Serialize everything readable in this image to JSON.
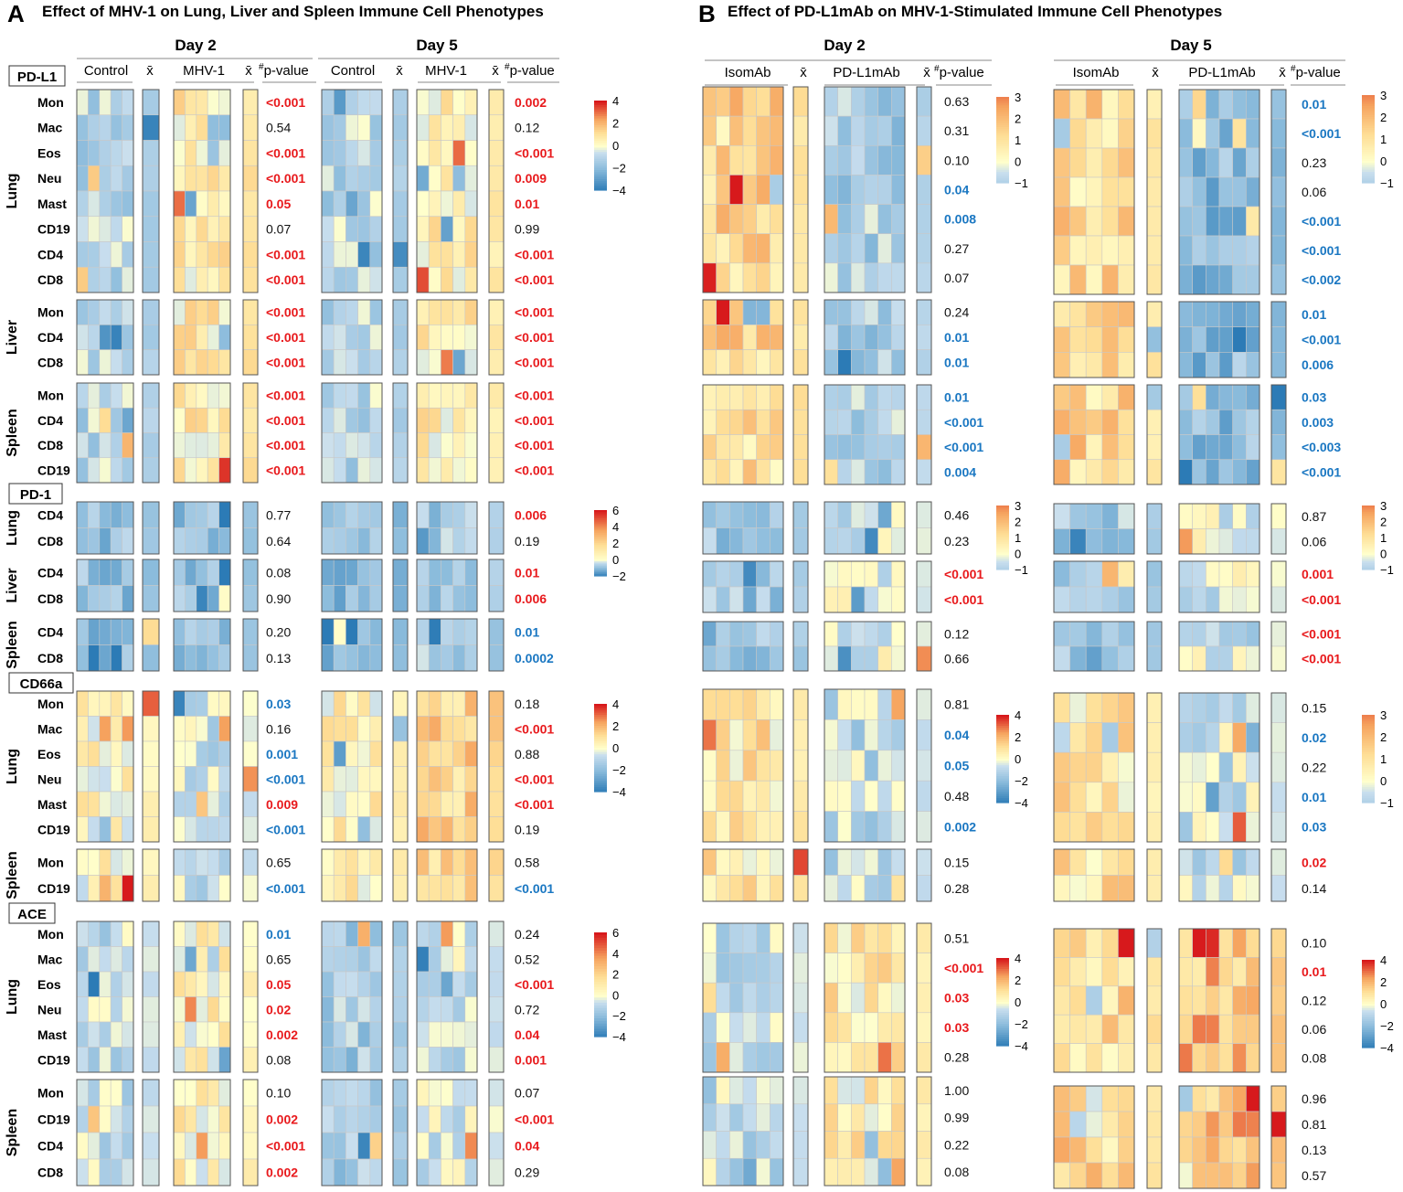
{
  "panels": {
    "A": {
      "letter": "A",
      "title": "Effect of MHV-1 on Lung, Liver and Spleen Immune Cell Phenotypes"
    },
    "B": {
      "letter": "B",
      "title": "Effect of PD-L1mAb on MHV-1-Stimulated Immune Cell Phenotypes"
    }
  },
  "headers": {
    "day2": "Day 2",
    "day5": "Day 5",
    "control": "Control",
    "mhv1": "MHV-1",
    "isomab": "IsomAb",
    "pdl1mab": "PD-L1mAb",
    "mean_symbol": "x̄",
    "pvalue_hash": "#",
    "pvalue": "p-value"
  },
  "colors": {
    "high": "#d7191c",
    "mid_high": "#f4a259",
    "mid": "#ffffbf",
    "mid_low": "#a6cce3",
    "low": "#2c7bb6",
    "sig_increase": "#e8191c",
    "sig_decrease": "#1a77c2",
    "nonsig": "#111111"
  },
  "chart_data": {
    "type": "heatmap",
    "title": "Immune cell phenotype heatmaps with group means and p-values",
    "blocks": [
      {
        "marker": "PD-L1",
        "legend": {
          "A": [
            -4,
            4
          ],
          "B": [
            -1,
            3
          ]
        },
        "tissues": [
          {
            "tissue": "Lung",
            "rows": [
              "Mon",
              "Mac",
              "Eos",
              "Neu",
              "Mast",
              "CD19",
              "CD4",
              "CD8"
            ],
            "pA_day2": [
              "<0.001",
              "0.54",
              "<0.001",
              "<0.001",
              "0.05",
              "0.07",
              "<0.001",
              "<0.001"
            ],
            "sA_day2": [
              "up",
              "ns",
              "up",
              "up",
              "up",
              "ns",
              "up",
              "up"
            ],
            "pA_day5": [
              "0.002",
              "0.12",
              "<0.001",
              "0.009",
              "0.01",
              "0.99",
              "<0.001",
              "<0.001"
            ],
            "sA_day5": [
              "up",
              "ns",
              "up",
              "up",
              "up",
              "ns",
              "up",
              "up"
            ],
            "pB_day2": [
              "0.63",
              "0.31",
              "0.10",
              "0.04",
              "0.008",
              "0.27",
              "0.07"
            ],
            "sB_day2": [
              "ns",
              "ns",
              "ns",
              "down",
              "down",
              "ns",
              "ns"
            ],
            "pB_day5": [
              "0.01",
              "<0.001",
              "0.23",
              "0.06",
              "<0.001",
              "<0.001",
              "<0.002"
            ],
            "sB_day5": [
              "down",
              "down",
              "ns",
              "ns",
              "down",
              "down",
              "down"
            ]
          },
          {
            "tissue": "Liver",
            "rows": [
              "Mon",
              "CD4",
              "CD8"
            ],
            "pA_day2": [
              "<0.001",
              "<0.001",
              "<0.001"
            ],
            "sA_day2": [
              "up",
              "up",
              "up"
            ],
            "pA_day5": [
              "<0.001",
              "<0.001",
              "<0.001"
            ],
            "sA_day5": [
              "up",
              "up",
              "up"
            ],
            "pB_day2": [
              "0.24",
              "0.01",
              "0.01"
            ],
            "sB_day2": [
              "ns",
              "down",
              "down"
            ],
            "pB_day5": [
              "0.01",
              "<0.001",
              "0.006"
            ],
            "sB_day5": [
              "down",
              "down",
              "down"
            ]
          },
          {
            "tissue": "Spleen",
            "rows": [
              "Mon",
              "CD4",
              "CD8",
              "CD19"
            ],
            "pA_day2": [
              "<0.001",
              "<0.001",
              "<0.001",
              "<0.001"
            ],
            "sA_day2": [
              "up",
              "up",
              "up",
              "up"
            ],
            "pA_day5": [
              "<0.001",
              "<0.001",
              "<0.001",
              "<0.001"
            ],
            "sA_day5": [
              "up",
              "up",
              "up",
              "up"
            ],
            "pB_day2": [
              "0.01",
              "<0.001",
              "<0.001",
              "0.004"
            ],
            "sB_day2": [
              "down",
              "down",
              "down",
              "down"
            ],
            "pB_day5": [
              "0.03",
              "0.003",
              "<0.003",
              "<0.001"
            ],
            "sB_day5": [
              "down",
              "down",
              "down",
              "down"
            ]
          }
        ]
      },
      {
        "marker": "PD-1",
        "legend": {
          "A": [
            -2,
            6
          ],
          "B": [
            -1,
            3
          ]
        },
        "tissues": [
          {
            "tissue": "Lung",
            "rows": [
              "CD4",
              "CD8"
            ],
            "pA_day2": [
              "0.77",
              "0.64"
            ],
            "sA_day2": [
              "ns",
              "ns"
            ],
            "pA_day5": [
              "0.006",
              "0.19"
            ],
            "sA_day5": [
              "up",
              "ns"
            ],
            "pB_day2": [
              "0.46",
              "0.23"
            ],
            "sB_day2": [
              "ns",
              "ns"
            ],
            "pB_day5": [
              "0.87",
              "0.06"
            ],
            "sB_day5": [
              "ns",
              "ns"
            ]
          },
          {
            "tissue": "Liver",
            "rows": [
              "CD4",
              "CD8"
            ],
            "pA_day2": [
              "0.08",
              "0.90"
            ],
            "sA_day2": [
              "ns",
              "ns"
            ],
            "pA_day5": [
              "0.01",
              "0.006"
            ],
            "sA_day5": [
              "up",
              "up"
            ],
            "pB_day2": [
              "<0.001",
              "<0.001"
            ],
            "sB_day2": [
              "up",
              "up"
            ],
            "pB_day5": [
              "0.001",
              "<0.001"
            ],
            "sB_day5": [
              "up",
              "up"
            ]
          },
          {
            "tissue": "Spleen",
            "rows": [
              "CD4",
              "CD8"
            ],
            "pA_day2": [
              "0.20",
              "0.13"
            ],
            "sA_day2": [
              "ns",
              "ns"
            ],
            "pA_day5": [
              "0.01",
              "0.0002"
            ],
            "sA_day5": [
              "down",
              "down"
            ],
            "pB_day2": [
              "0.12",
              "0.66"
            ],
            "sB_day2": [
              "ns",
              "ns"
            ],
            "pB_day5": [
              "<0.001",
              "<0.001"
            ],
            "sB_day5": [
              "up",
              "up"
            ]
          }
        ]
      },
      {
        "marker": "CD66a",
        "legend": {
          "A": [
            -4,
            4
          ],
          "B": [
            -4,
            4
          ],
          "B_day5": [
            -1,
            3
          ]
        },
        "tissues": [
          {
            "tissue": "Lung",
            "rows": [
              "Mon",
              "Mac",
              "Eos",
              "Neu",
              "Mast",
              "CD19"
            ],
            "pA_day2": [
              "0.03",
              "0.16",
              "0.001",
              "<0.001",
              "0.009",
              "<0.001"
            ],
            "sA_day2": [
              "down",
              "ns",
              "down",
              "down",
              "up",
              "down"
            ],
            "pA_day5": [
              "0.18",
              "<0.001",
              "0.88",
              "<0.001",
              "<0.001",
              "0.19"
            ],
            "sA_day5": [
              "ns",
              "up",
              "ns",
              "up",
              "up",
              "ns"
            ],
            "pB_day2": [
              "0.81",
              "0.04",
              "0.05",
              "0.48",
              "0.002"
            ],
            "sB_day2": [
              "ns",
              "down",
              "down",
              "ns",
              "down"
            ],
            "pB_day5": [
              "0.15",
              "0.02",
              "0.22",
              "0.01",
              "0.03"
            ],
            "sB_day5": [
              "ns",
              "down",
              "ns",
              "down",
              "down"
            ]
          },
          {
            "tissue": "Spleen",
            "rows": [
              "Mon",
              "CD19"
            ],
            "pA_day2": [
              "0.65",
              "<0.001"
            ],
            "sA_day2": [
              "ns",
              "down"
            ],
            "pA_day5": [
              "0.58",
              "<0.001"
            ],
            "sA_day5": [
              "ns",
              "down"
            ],
            "pB_day2": [
              "0.15",
              "0.28"
            ],
            "sB_day2": [
              "ns",
              "ns"
            ],
            "pB_day5": [
              "0.02",
              "0.14"
            ],
            "sB_day5": [
              "up",
              "ns"
            ]
          }
        ]
      },
      {
        "marker": "ACE",
        "legend": {
          "A": [
            -4,
            6
          ],
          "B": [
            -4,
            4
          ]
        },
        "tissues": [
          {
            "tissue": "Lung",
            "rows": [
              "Mon",
              "Mac",
              "Eos",
              "Neu",
              "Mast",
              "CD19"
            ],
            "pA_day2": [
              "0.01",
              "0.65",
              "0.05",
              "0.02",
              "0.002",
              "0.08"
            ],
            "sA_day2": [
              "down",
              "ns",
              "up",
              "up",
              "up",
              "ns"
            ],
            "pA_day5": [
              "0.24",
              "0.52",
              "<0.001",
              "0.72",
              "0.04",
              "0.001"
            ],
            "sA_day5": [
              "ns",
              "ns",
              "up",
              "ns",
              "up",
              "up"
            ],
            "pB_day2": [
              "0.51",
              "<0.001",
              "0.03",
              "0.03",
              "0.28"
            ],
            "sB_day2": [
              "ns",
              "up",
              "up",
              "up",
              "ns"
            ],
            "pB_day5": [
              "0.10",
              "0.01",
              "0.12",
              "0.06",
              "0.08"
            ],
            "sB_day5": [
              "ns",
              "up",
              "ns",
              "ns",
              "ns"
            ]
          },
          {
            "tissue": "Spleen",
            "rows": [
              "Mon",
              "CD19",
              "CD4",
              "CD8"
            ],
            "pA_day2": [
              "0.10",
              "0.002",
              "<0.001",
              "0.002"
            ],
            "sA_day2": [
              "ns",
              "up",
              "up",
              "up"
            ],
            "pA_day5": [
              "0.07",
              "<0.001",
              "0.04",
              "0.29"
            ],
            "sA_day5": [
              "ns",
              "up",
              "up",
              "ns"
            ],
            "pB_day2": [
              "1.00",
              "0.99",
              "0.22",
              "0.08"
            ],
            "sB_day2": [
              "ns",
              "ns",
              "ns",
              "ns"
            ],
            "pB_day5": [
              "0.96",
              "0.81",
              "0.13",
              "0.57"
            ],
            "sB_day5": [
              "ns",
              "ns",
              "ns",
              "ns"
            ]
          }
        ]
      }
    ]
  }
}
